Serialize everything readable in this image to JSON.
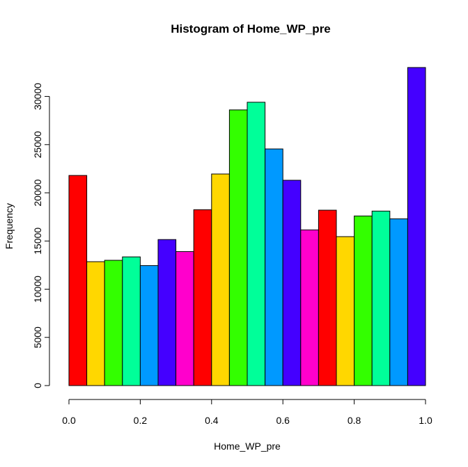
{
  "chart_data": {
    "type": "bar",
    "title": "Histogram of Home_WP_pre",
    "xlabel": "Home_WP_pre",
    "ylabel": "Frequency",
    "xlim": [
      0,
      1
    ],
    "ylim": [
      0,
      33000
    ],
    "bin_width": 0.05,
    "x_ticks": [
      "0.0",
      "0.2",
      "0.4",
      "0.6",
      "0.8",
      "1.0"
    ],
    "y_ticks": [
      "0",
      "5000",
      "10000",
      "15000",
      "20000",
      "25000",
      "30000"
    ],
    "bins": [
      {
        "x0": 0.0,
        "x1": 0.05,
        "value": 21800,
        "color": "#FF0000"
      },
      {
        "x0": 0.05,
        "x1": 0.1,
        "value": 12850,
        "color": "#FFD700"
      },
      {
        "x0": 0.1,
        "x1": 0.15,
        "value": 13000,
        "color": "#33FF00"
      },
      {
        "x0": 0.15,
        "x1": 0.2,
        "value": 13350,
        "color": "#00FF99"
      },
      {
        "x0": 0.2,
        "x1": 0.25,
        "value": 12450,
        "color": "#0099FF"
      },
      {
        "x0": 0.25,
        "x1": 0.3,
        "value": 15150,
        "color": "#4400FF"
      },
      {
        "x0": 0.3,
        "x1": 0.35,
        "value": 13900,
        "color": "#FF00CC"
      },
      {
        "x0": 0.35,
        "x1": 0.4,
        "value": 18250,
        "color": "#FF0000"
      },
      {
        "x0": 0.4,
        "x1": 0.45,
        "value": 21950,
        "color": "#FFD700"
      },
      {
        "x0": 0.45,
        "x1": 0.5,
        "value": 28600,
        "color": "#33FF00"
      },
      {
        "x0": 0.5,
        "x1": 0.55,
        "value": 29400,
        "color": "#00FF99"
      },
      {
        "x0": 0.55,
        "x1": 0.6,
        "value": 24550,
        "color": "#0099FF"
      },
      {
        "x0": 0.6,
        "x1": 0.65,
        "value": 21300,
        "color": "#4400FF"
      },
      {
        "x0": 0.65,
        "x1": 0.7,
        "value": 16150,
        "color": "#FF00CC"
      },
      {
        "x0": 0.7,
        "x1": 0.75,
        "value": 18200,
        "color": "#FF0000"
      },
      {
        "x0": 0.75,
        "x1": 0.8,
        "value": 15450,
        "color": "#FFD700"
      },
      {
        "x0": 0.8,
        "x1": 0.85,
        "value": 17600,
        "color": "#33FF00"
      },
      {
        "x0": 0.85,
        "x1": 0.9,
        "value": 18100,
        "color": "#00FF99"
      },
      {
        "x0": 0.9,
        "x1": 0.95,
        "value": 17300,
        "color": "#0099FF"
      },
      {
        "x0": 0.95,
        "x1": 1.0,
        "value": 33000,
        "color": "#4400FF"
      }
    ],
    "grid": false,
    "legend": "none"
  }
}
